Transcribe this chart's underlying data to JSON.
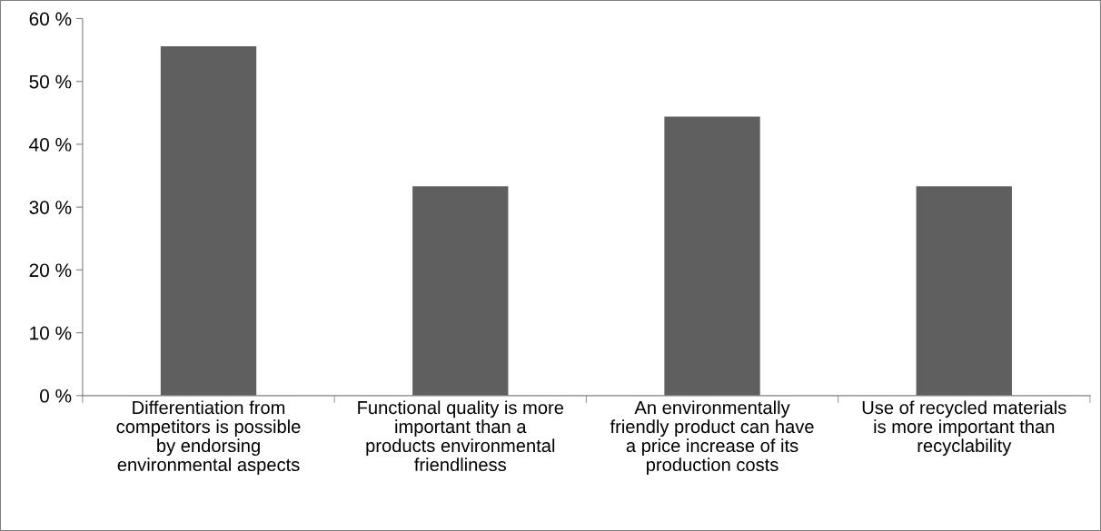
{
  "chart_data": {
    "type": "bar",
    "categories": [
      "Differentiation from\ncompetitors is possible\nby endorsing\nenvironmental aspects",
      "Functional quality is more\nimportant than a\nproducts environmental\nfriendliness",
      "An environmentally\nfriendly product can have\na price increase of its\nproduction costs",
      "Use of recycled materials\nis more important than\nrecyclability"
    ],
    "values": [
      55.6,
      33.3,
      44.4,
      33.3
    ],
    "color": "#5f5f5f",
    "ylim": [
      0,
      60
    ],
    "yticks": [
      {
        "value": 0,
        "label": "0 %"
      },
      {
        "value": 10,
        "label": "10 %"
      },
      {
        "value": 20,
        "label": "20 %"
      },
      {
        "value": 30,
        "label": "30 %"
      },
      {
        "value": 40,
        "label": "40 %"
      },
      {
        "value": 50,
        "label": "50 %"
      },
      {
        "value": 60,
        "label": "60 %"
      }
    ],
    "grid": false
  }
}
